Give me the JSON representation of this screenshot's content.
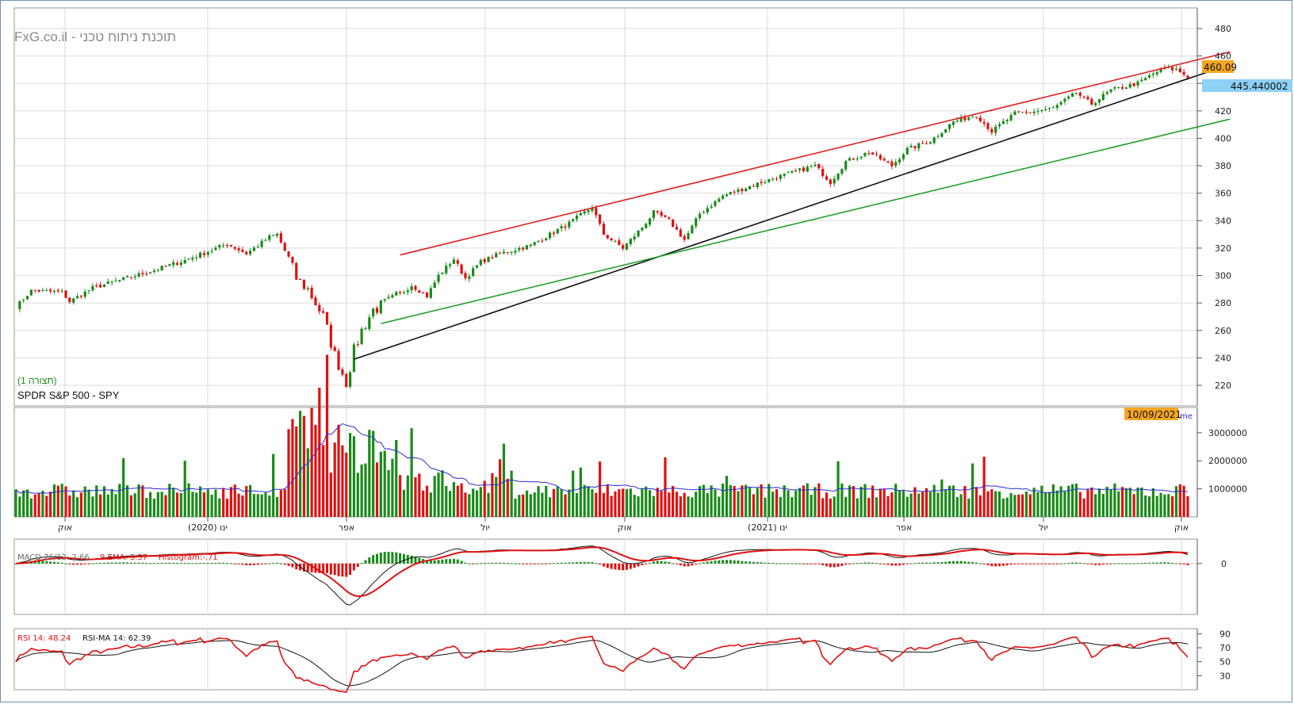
{
  "header": {
    "watermark": "FxG.co.il - תוכנת ניתוח טכני",
    "instrument": "SPDR S&P 500 - SPY",
    "chart_tag": "(תצורה 1)"
  },
  "badges": {
    "last_price": "460.09",
    "cursor_price": "445.440002",
    "cursor_date": "10/09/2021",
    "volume_label_fragment": "me"
  },
  "colors": {
    "up": "#1a8a1a",
    "down": "#e01010",
    "grid": "#dcdcdc",
    "resistance": "#e02020",
    "support": "#111111",
    "support2": "#22a02a",
    "vol_ma": "#2b2bd6",
    "macd_line": "#111111",
    "signal_line": "#e01010",
    "rsi_line": "#e01010",
    "rsi_ma": "#111111",
    "price_badge": "#f5a623",
    "cursor_badge": "#8fd0f5"
  },
  "time_axis": {
    "labels": [
      "אוק",
      "ינו (2020)",
      "אפר",
      "יול",
      "אוק",
      "ינו (2021)",
      "אפר",
      "יול",
      "אוק"
    ]
  },
  "chart_data": [
    {
      "type": "candlestick",
      "panel": "price",
      "title": "SPDR S&P 500 - SPY",
      "ylim": [
        205,
        495
      ],
      "yticks": [
        220,
        240,
        260,
        280,
        300,
        320,
        340,
        360,
        380,
        400,
        420,
        440,
        460,
        480
      ],
      "last_value": 460.09,
      "cursor_value": 445.440002,
      "x_start": "2019-09",
      "x_end": "2021-09",
      "close_anchors": [
        {
          "t": 0,
          "v": 277
        },
        {
          "t": 4,
          "v": 289
        },
        {
          "t": 12,
          "v": 288
        },
        {
          "t": 14,
          "v": 281
        },
        {
          "t": 20,
          "v": 291
        },
        {
          "t": 35,
          "v": 303
        },
        {
          "t": 45,
          "v": 312
        },
        {
          "t": 55,
          "v": 323
        },
        {
          "t": 60,
          "v": 316
        },
        {
          "t": 66,
          "v": 328
        },
        {
          "t": 68,
          "v": 330
        },
        {
          "t": 71,
          "v": 312
        },
        {
          "t": 73,
          "v": 298
        },
        {
          "t": 76,
          "v": 290
        },
        {
          "t": 80,
          "v": 270
        },
        {
          "t": 83,
          "v": 242
        },
        {
          "t": 86,
          "v": 222
        },
        {
          "t": 88,
          "v": 245
        },
        {
          "t": 90,
          "v": 260
        },
        {
          "t": 93,
          "v": 275
        },
        {
          "t": 98,
          "v": 282
        },
        {
          "t": 103,
          "v": 293
        },
        {
          "t": 107,
          "v": 285
        },
        {
          "t": 110,
          "v": 300
        },
        {
          "t": 114,
          "v": 312
        },
        {
          "t": 117,
          "v": 298
        },
        {
          "t": 121,
          "v": 310
        },
        {
          "t": 126,
          "v": 316
        },
        {
          "t": 134,
          "v": 322
        },
        {
          "t": 144,
          "v": 338
        },
        {
          "t": 150,
          "v": 350
        },
        {
          "t": 153,
          "v": 330
        },
        {
          "t": 158,
          "v": 320
        },
        {
          "t": 163,
          "v": 335
        },
        {
          "t": 166,
          "v": 346
        },
        {
          "t": 170,
          "v": 340
        },
        {
          "t": 174,
          "v": 326
        },
        {
          "t": 178,
          "v": 345
        },
        {
          "t": 184,
          "v": 358
        },
        {
          "t": 194,
          "v": 368
        },
        {
          "t": 202,
          "v": 375
        },
        {
          "t": 208,
          "v": 380
        },
        {
          "t": 212,
          "v": 368
        },
        {
          "t": 216,
          "v": 383
        },
        {
          "t": 222,
          "v": 390
        },
        {
          "t": 228,
          "v": 380
        },
        {
          "t": 232,
          "v": 392
        },
        {
          "t": 238,
          "v": 398
        },
        {
          "t": 244,
          "v": 412
        },
        {
          "t": 250,
          "v": 417
        },
        {
          "t": 254,
          "v": 405
        },
        {
          "t": 260,
          "v": 418
        },
        {
          "t": 266,
          "v": 420
        },
        {
          "t": 270,
          "v": 422
        },
        {
          "t": 276,
          "v": 433
        },
        {
          "t": 280,
          "v": 425
        },
        {
          "t": 285,
          "v": 435
        },
        {
          "t": 292,
          "v": 440
        },
        {
          "t": 296,
          "v": 447
        },
        {
          "t": 299,
          "v": 451
        },
        {
          "t": 302,
          "v": 450
        },
        {
          "t": 305,
          "v": 445
        }
      ],
      "trendlines": [
        {
          "name": "resistance",
          "from": {
            "t": 100,
            "v": 315
          },
          "to": {
            "t": 316,
            "v": 463
          }
        },
        {
          "name": "support",
          "from": {
            "t": 88,
            "v": 239
          },
          "to": {
            "t": 312,
            "v": 450
          }
        },
        {
          "name": "support2",
          "from": {
            "t": 95,
            "v": 265
          },
          "to": {
            "t": 316,
            "v": 414
          }
        }
      ]
    },
    {
      "type": "bar",
      "panel": "volume",
      "yticks": [
        1000000,
        2000000,
        3000000
      ],
      "ylim": [
        0,
        3900000
      ],
      "ma_series": "volume moving average"
    },
    {
      "type": "line",
      "panel": "macd",
      "legend": [
        "MACD 26/12: 2.66",
        "9 EMA: 3.37",
        "Histogram:-.71"
      ],
      "yticks": [
        0
      ],
      "ylim": [
        -13,
        5
      ]
    },
    {
      "type": "line",
      "panel": "rsi",
      "legend": [
        "RSI 14: 48.24",
        "RSI-MA 14: 62.39"
      ],
      "yticks": [
        30,
        50,
        70,
        90
      ],
      "ylim": [
        10,
        95
      ]
    }
  ]
}
